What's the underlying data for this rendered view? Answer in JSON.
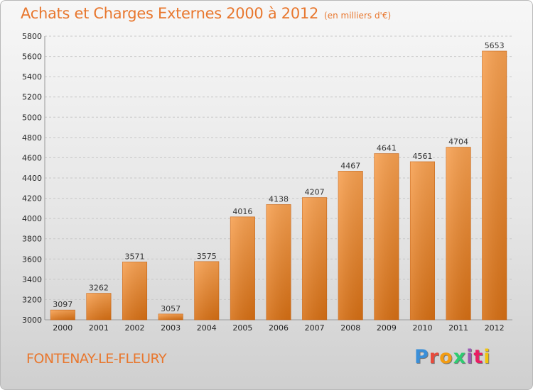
{
  "chart_data": {
    "type": "bar",
    "title": "Achats et Charges Externes 2000 à 2012",
    "unit": "(en milliers d'€)",
    "categories": [
      "2000",
      "2001",
      "2002",
      "2003",
      "2004",
      "2005",
      "2006",
      "2007",
      "2008",
      "2009",
      "2010",
      "2011",
      "2012"
    ],
    "values": [
      3097,
      3262,
      3571,
      3057,
      3575,
      4016,
      4138,
      4207,
      4467,
      4641,
      4561,
      4704,
      5653
    ],
    "ylim": [
      3000,
      5800
    ],
    "yticks": [
      3000,
      3200,
      3400,
      3600,
      3800,
      4000,
      4200,
      4400,
      4600,
      4800,
      5000,
      5200,
      5400,
      5600,
      5800
    ],
    "grid": true,
    "bar_color": "#f0923c"
  },
  "footer": {
    "commune": "FONTENAY-LE-FLEURY",
    "logo": "Proxiti"
  }
}
